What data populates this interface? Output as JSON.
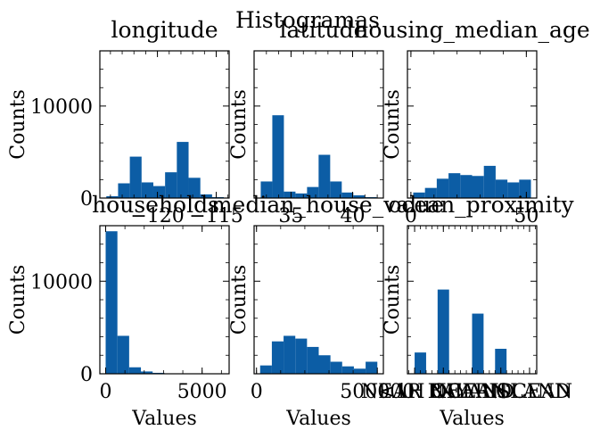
{
  "figure": {
    "title": "Histogramas",
    "bar_color": "#0c5da5"
  },
  "chart_data": [
    {
      "type": "bar",
      "title": "longitude",
      "xlabel": "",
      "ylabel": "Counts",
      "xlim": [
        -124.9,
        -113.9
      ],
      "ylim": [
        0,
        16000
      ],
      "xticks": [
        -120,
        -115
      ],
      "xtick_labels": [
        "−120",
        "−115"
      ],
      "yticks": [
        0,
        10000
      ],
      "ytick_labels": [
        "0",
        "10000"
      ],
      "show_ytick_labels": true,
      "bins": [
        {
          "x0": -124.35,
          "x1": -123.35,
          "value": 200
        },
        {
          "x0": -123.35,
          "x1": -122.35,
          "value": 1600
        },
        {
          "x0": -122.35,
          "x1": -121.35,
          "value": 4500
        },
        {
          "x0": -121.35,
          "x1": -120.35,
          "value": 1700
        },
        {
          "x0": -120.35,
          "x1": -119.35,
          "value": 1300
        },
        {
          "x0": -119.35,
          "x1": -118.35,
          "value": 2800
        },
        {
          "x0": -118.35,
          "x1": -117.35,
          "value": 6100
        },
        {
          "x0": -117.35,
          "x1": -116.35,
          "value": 2200
        },
        {
          "x0": -116.35,
          "x1": -115.35,
          "value": 400
        },
        {
          "x0": -115.35,
          "x1": -114.35,
          "value": 100
        }
      ]
    },
    {
      "type": "bar",
      "title": "latitude",
      "xlabel": "",
      "ylabel": "Counts",
      "xlim": [
        32.0,
        42.5
      ],
      "ylim": [
        0,
        16000
      ],
      "xticks": [
        35,
        40
      ],
      "xtick_labels": [
        "35",
        "40"
      ],
      "yticks": [
        0,
        10000
      ],
      "ytick_labels": [
        "0",
        "10000"
      ],
      "show_ytick_labels": false,
      "bins": [
        {
          "x0": 32.54,
          "x1": 33.48,
          "value": 1800
        },
        {
          "x0": 33.48,
          "x1": 34.42,
          "value": 9000
        },
        {
          "x0": 34.42,
          "x1": 35.36,
          "value": 700
        },
        {
          "x0": 35.36,
          "x1": 36.3,
          "value": 500
        },
        {
          "x0": 36.3,
          "x1": 37.24,
          "value": 1200
        },
        {
          "x0": 37.24,
          "x1": 38.18,
          "value": 4700
        },
        {
          "x0": 38.18,
          "x1": 39.12,
          "value": 1800
        },
        {
          "x0": 39.12,
          "x1": 40.06,
          "value": 600
        },
        {
          "x0": 40.06,
          "x1": 41.0,
          "value": 300
        },
        {
          "x0": 41.0,
          "x1": 41.95,
          "value": 100
        }
      ]
    },
    {
      "type": "bar",
      "title": "housing_median_age",
      "xlabel": "",
      "ylabel": "Counts",
      "xlim": [
        -1.5,
        54.5
      ],
      "ylim": [
        0,
        16000
      ],
      "xticks": [
        0,
        50
      ],
      "xtick_labels": [
        "0",
        "50"
      ],
      "yticks": [
        0,
        10000
      ],
      "ytick_labels": [
        "0",
        "10000"
      ],
      "show_ytick_labels": false,
      "bins": [
        {
          "x0": 1.0,
          "x1": 6.1,
          "value": 600
        },
        {
          "x0": 6.1,
          "x1": 11.2,
          "value": 1100
        },
        {
          "x0": 11.2,
          "x1": 16.3,
          "value": 2100
        },
        {
          "x0": 16.3,
          "x1": 21.4,
          "value": 2700
        },
        {
          "x0": 21.4,
          "x1": 26.5,
          "value": 2500
        },
        {
          "x0": 26.5,
          "x1": 31.6,
          "value": 2400
        },
        {
          "x0": 31.6,
          "x1": 36.7,
          "value": 3500
        },
        {
          "x0": 36.7,
          "x1": 41.8,
          "value": 2000
        },
        {
          "x0": 41.8,
          "x1": 46.9,
          "value": 1700
        },
        {
          "x0": 46.9,
          "x1": 52.0,
          "value": 2000
        }
      ]
    },
    {
      "type": "bar",
      "title": "households",
      "xlabel": "Values",
      "ylabel": "Counts",
      "xlim": [
        -300,
        6400
      ],
      "ylim": [
        0,
        16000
      ],
      "xticks": [
        0,
        5000
      ],
      "xtick_labels": [
        "0",
        "5000"
      ],
      "yticks": [
        0,
        10000
      ],
      "ytick_labels": [
        "0",
        "10000"
      ],
      "show_ytick_labels": true,
      "bins": [
        {
          "x0": 1,
          "x1": 610,
          "value": 15400
        },
        {
          "x0": 610,
          "x1": 1219,
          "value": 4100
        },
        {
          "x0": 1219,
          "x1": 1828,
          "value": 700
        },
        {
          "x0": 1828,
          "x1": 2437,
          "value": 250
        },
        {
          "x0": 2437,
          "x1": 3046,
          "value": 100
        },
        {
          "x0": 3046,
          "x1": 3655,
          "value": 40
        },
        {
          "x0": 3655,
          "x1": 4264,
          "value": 15
        },
        {
          "x0": 4264,
          "x1": 4873,
          "value": 8
        },
        {
          "x0": 4873,
          "x1": 5482,
          "value": 5
        },
        {
          "x0": 5482,
          "x1": 6091,
          "value": 3
        }
      ]
    },
    {
      "type": "bar",
      "title": "median_house_value",
      "xlabel": "Values",
      "ylabel": "Counts",
      "xlim": [
        -10000,
        525000
      ],
      "ylim": [
        0,
        16000
      ],
      "xticks": [
        0,
        500000
      ],
      "xtick_labels": [
        "0",
        "500000"
      ],
      "yticks": [
        0,
        10000
      ],
      "ytick_labels": [
        "0",
        "10000"
      ],
      "show_ytick_labels": false,
      "bins": [
        {
          "x0": 15000,
          "x1": 63500,
          "value": 900
        },
        {
          "x0": 63500,
          "x1": 112000,
          "value": 3500
        },
        {
          "x0": 112000,
          "x1": 160500,
          "value": 4100
        },
        {
          "x0": 160500,
          "x1": 209000,
          "value": 3800
        },
        {
          "x0": 209000,
          "x1": 257500,
          "value": 2900
        },
        {
          "x0": 257500,
          "x1": 306000,
          "value": 2000
        },
        {
          "x0": 306000,
          "x1": 354500,
          "value": 1300
        },
        {
          "x0": 354500,
          "x1": 403000,
          "value": 800
        },
        {
          "x0": 403000,
          "x1": 451500,
          "value": 550
        },
        {
          "x0": 451500,
          "x1": 500001,
          "value": 1300
        }
      ]
    },
    {
      "type": "bar",
      "title": "ocean_proximity",
      "xlabel": "Values",
      "ylabel": "Counts",
      "xlim": [
        -0.25,
        4.25
      ],
      "ylim": [
        0,
        16000
      ],
      "xticks": [
        0,
        1,
        2,
        3,
        4
      ],
      "xtick_labels": [
        "NEAR BAY",
        "<1H OCEAN",
        "INLAND",
        "NEAR OCEAN",
        "ISLAND"
      ],
      "yticks": [
        0,
        10000
      ],
      "ytick_labels": [
        "0",
        "10000"
      ],
      "show_ytick_labels": false,
      "bins": [
        {
          "x0": 0.0,
          "x1": 0.4,
          "value": 2300
        },
        {
          "x0": 0.8,
          "x1": 1.2,
          "value": 9100
        },
        {
          "x0": 2.0,
          "x1": 2.4,
          "value": 6500
        },
        {
          "x0": 2.8,
          "x1": 3.2,
          "value": 2700
        },
        {
          "x0": 3.6,
          "x1": 4.0,
          "value": 5
        }
      ]
    }
  ]
}
